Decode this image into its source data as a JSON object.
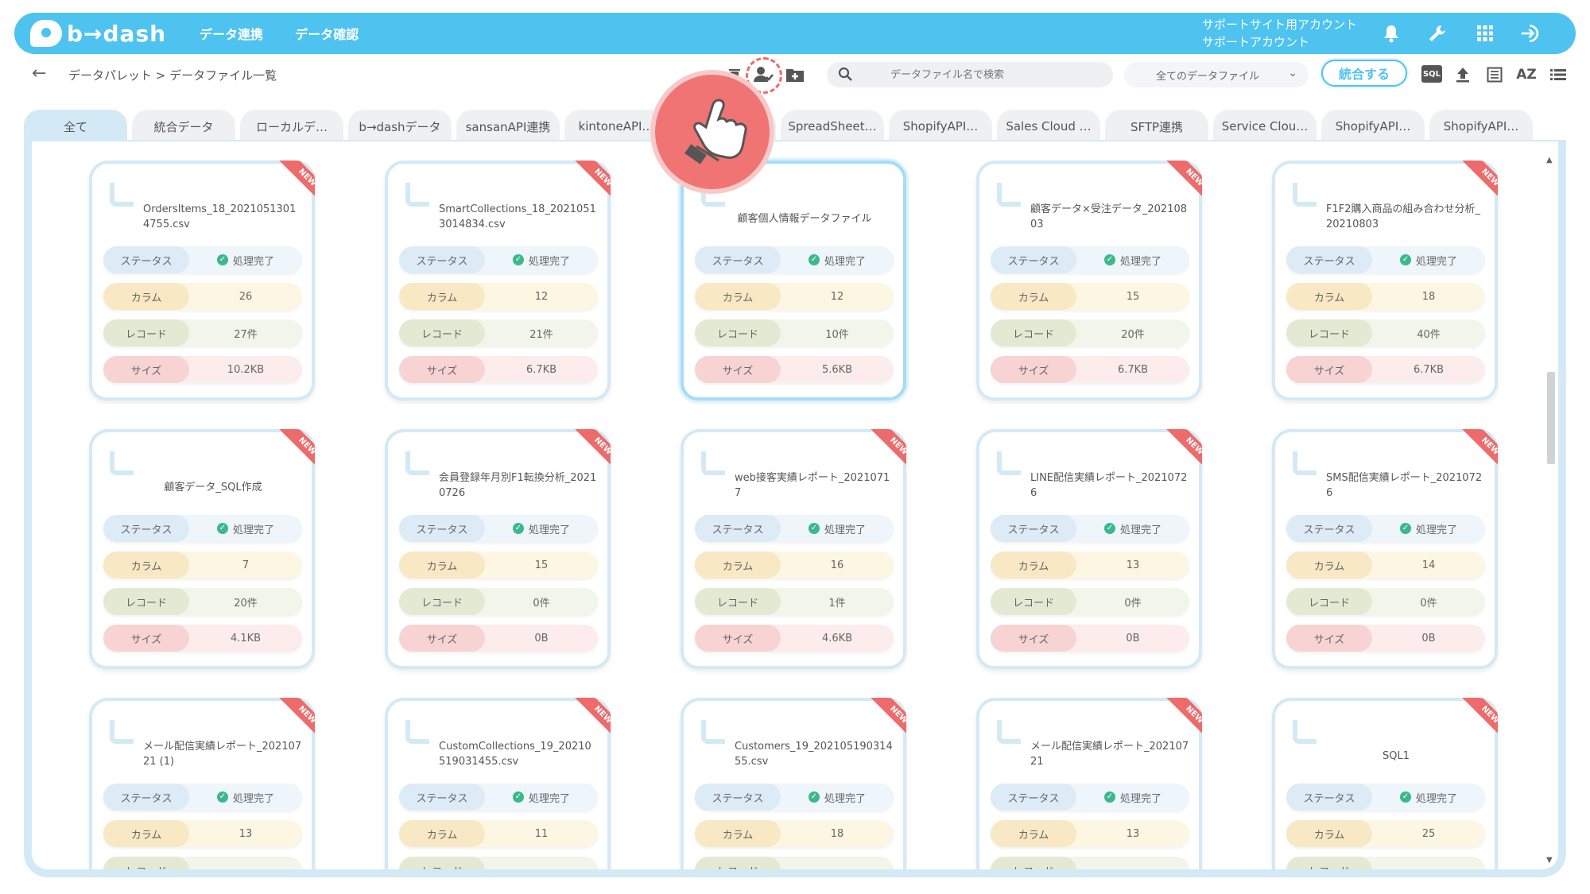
{
  "header": {
    "logo_text": "b→dash",
    "nav": [
      "データ連携",
      "データ確認"
    ],
    "account_line1": "サポートサイト用アカウント",
    "account_line2": "サポートアカウント"
  },
  "toolbar": {
    "breadcrumb": "データパレット > データファイル一覧",
    "search_placeholder": "データファイル名で検索",
    "filter_value": "全てのデータファイル",
    "merge_label": "統合する",
    "sql_label": "SQL",
    "az_label": "AZ"
  },
  "tabs": [
    "全て",
    "統合データ",
    "ローカルデ…",
    "b→dashデータ",
    "sansanAPI連携",
    "kintoneAPI…",
    "",
    "SpreadSheet…",
    "ShopifyAPI…",
    "Sales Cloud …",
    "SFTP連携",
    "Service Clou…",
    "ShopifyAPI…",
    "ShopifyAPI…"
  ],
  "labels": {
    "status": "ステータス",
    "column": "カラム",
    "record": "レコード",
    "size": "サイズ",
    "new": "NEW"
  },
  "cards": [
    {
      "title": "OrdersItems_18_20210513014755.csv",
      "status": "処理完了",
      "columns": "26",
      "records": "27件",
      "size": "10.2KB"
    },
    {
      "title": "SmartCollections_18_20210513014834.csv",
      "status": "処理完了",
      "columns": "12",
      "records": "21件",
      "size": "6.7KB"
    },
    {
      "title": "顧客個人情報データファイル",
      "status": "処理完了",
      "columns": "12",
      "records": "10件",
      "size": "5.6KB"
    },
    {
      "title": "顧客データ×受注データ_20210803",
      "status": "処理完了",
      "columns": "15",
      "records": "20件",
      "size": "6.7KB"
    },
    {
      "title": "F1F2購入商品の組み合わせ分析_20210803",
      "status": "処理完了",
      "columns": "18",
      "records": "40件",
      "size": "6.7KB"
    },
    {
      "title": "顧客データ_SQL作成",
      "status": "処理完了",
      "columns": "7",
      "records": "20件",
      "size": "4.1KB"
    },
    {
      "title": "会員登録年月別F1転換分析_20210726",
      "status": "処理完了",
      "columns": "15",
      "records": "0件",
      "size": "0B"
    },
    {
      "title": "web接客実績レポート_20210717",
      "status": "処理完了",
      "columns": "16",
      "records": "1件",
      "size": "4.6KB"
    },
    {
      "title": "LINE配信実績レポート_20210726",
      "status": "処理完了",
      "columns": "13",
      "records": "0件",
      "size": "0B"
    },
    {
      "title": "SMS配信実績レポート_20210726",
      "status": "処理完了",
      "columns": "14",
      "records": "0件",
      "size": "0B"
    },
    {
      "title": "メール配信実績レポート_20210721 (1)",
      "status": "処理完了",
      "columns": "13",
      "records": "",
      "size": ""
    },
    {
      "title": "CustomCollections_19_20210519031455.csv",
      "status": "処理完了",
      "columns": "11",
      "records": "",
      "size": ""
    },
    {
      "title": "Customers_19_20210519031455.csv",
      "status": "処理完了",
      "columns": "18",
      "records": "",
      "size": ""
    },
    {
      "title": "メール配信実績レポート_20210721",
      "status": "処理完了",
      "columns": "13",
      "records": "",
      "size": ""
    },
    {
      "title": "SQL1",
      "status": "処理完了",
      "columns": "25",
      "records": "",
      "size": ""
    }
  ],
  "selected_card_index": 2,
  "colors": {
    "brand": "#4ec3f0",
    "tab_active": "#d4e9f6",
    "new_ribbon": "#ee6b6b",
    "status_ok": "#3cb88a"
  },
  "icons": [
    "bell-icon",
    "wrench-icon",
    "apps-grid-icon",
    "logout-icon",
    "back-arrow-icon",
    "trash-icon",
    "user-check-icon",
    "folder-add-icon",
    "search-icon",
    "upload-icon",
    "list-view-icon",
    "sort-az-icon",
    "menu-list-icon",
    "hand-pointer-icon"
  ]
}
